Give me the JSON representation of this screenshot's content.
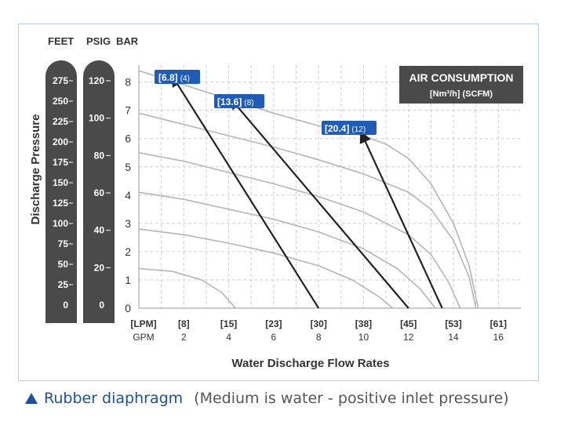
{
  "colors": {
    "pill": "#4a4a4a",
    "badge": "#1f5bb8",
    "grid": "#cfcfcf",
    "curve": "#b5b5b5",
    "line": "#222222",
    "caption": "#1d4fa0"
  },
  "caption": {
    "main": "Rubber diaphragm",
    "note": "(Medium is water -  positive inlet pressure)"
  },
  "chart_data": {
    "type": "line",
    "title": "",
    "xlabel": "Water Discharge Flow Rates",
    "ylabel": "Discharge Pressure",
    "xlim": [
      0,
      17
    ],
    "ylim": [
      0,
      8.6
    ],
    "grid": true,
    "x_ticks_lpm": [
      "[LPM]",
      "[8]",
      "[15]",
      "[23]",
      "[30]",
      "[38]",
      "[45]",
      "[53]",
      "[61]"
    ],
    "x_ticks_gpm": [
      "GPM",
      "2",
      "4",
      "6",
      "8",
      "10",
      "12",
      "14",
      "16"
    ],
    "y_ticks_bar": [
      "0",
      "1",
      "2",
      "3",
      "4",
      "5",
      "6",
      "7",
      "8"
    ],
    "units_header": [
      "FEET",
      "PSIG",
      "BAR"
    ],
    "feet_ticks": [
      "275",
      "250",
      "225",
      "200",
      "175",
      "150",
      "125",
      "100",
      "75",
      "50",
      "25",
      "0"
    ],
    "psig_ticks": [
      "120",
      "100",
      "80",
      "60",
      "40",
      "20",
      "0"
    ],
    "legend": {
      "title": "AIR CONSUMPTION",
      "subtitle": "[Nm³/h] (SCFM)",
      "placement": "top-right"
    },
    "air_labels": [
      {
        "bold": "[6.8]",
        "light": "(4)"
      },
      {
        "bold": "[13.6]",
        "light": "(8)"
      },
      {
        "bold": "[20.4]",
        "light": "(12)"
      }
    ],
    "air_lines": [
      {
        "label": "[6.8] (4)",
        "points": [
          [
            1.5,
            8.2
          ],
          [
            8.0,
            0
          ]
        ]
      },
      {
        "label": "[13.6] (8)",
        "points": [
          [
            4.1,
            7.4
          ],
          [
            12.0,
            0
          ]
        ]
      },
      {
        "label": "[20.4] (12)",
        "points": [
          [
            9.9,
            6.2
          ],
          [
            13.5,
            0
          ]
        ]
      }
    ],
    "series": [
      {
        "points": [
          [
            0,
            8.4
          ],
          [
            2,
            7.9
          ],
          [
            4,
            7.4
          ],
          [
            6,
            6.9
          ],
          [
            8,
            6.45
          ],
          [
            10,
            6.1
          ],
          [
            11,
            5.8
          ],
          [
            12,
            5.3
          ],
          [
            13,
            4.4
          ],
          [
            14,
            3.0
          ],
          [
            14.7,
            1.5
          ],
          [
            15.1,
            0
          ]
        ]
      },
      {
        "points": [
          [
            0,
            6.9
          ],
          [
            2,
            6.5
          ],
          [
            4,
            6.1
          ],
          [
            6,
            5.7
          ],
          [
            8,
            5.25
          ],
          [
            10,
            4.75
          ],
          [
            12,
            4.1
          ],
          [
            13,
            3.5
          ],
          [
            14,
            2.4
          ],
          [
            14.7,
            1.1
          ],
          [
            15.0,
            0
          ]
        ]
      },
      {
        "points": [
          [
            0,
            5.5
          ],
          [
            2,
            5.2
          ],
          [
            4,
            4.8
          ],
          [
            6,
            4.4
          ],
          [
            8,
            3.95
          ],
          [
            10,
            3.4
          ],
          [
            12,
            2.6
          ],
          [
            13,
            1.9
          ],
          [
            13.8,
            0.9
          ],
          [
            14.3,
            0
          ]
        ]
      },
      {
        "points": [
          [
            0,
            4.1
          ],
          [
            2,
            3.85
          ],
          [
            4,
            3.5
          ],
          [
            6,
            3.15
          ],
          [
            8,
            2.7
          ],
          [
            10,
            2.1
          ],
          [
            11.5,
            1.4
          ],
          [
            12.5,
            0.7
          ],
          [
            13.2,
            0
          ]
        ]
      },
      {
        "points": [
          [
            0,
            2.8
          ],
          [
            2,
            2.6
          ],
          [
            4,
            2.3
          ],
          [
            6,
            1.95
          ],
          [
            8,
            1.5
          ],
          [
            9.5,
            1.0
          ],
          [
            10.7,
            0.4
          ],
          [
            11.3,
            0
          ]
        ]
      },
      {
        "points": [
          [
            0,
            1.4
          ],
          [
            1.5,
            1.3
          ],
          [
            2.8,
            1.0
          ],
          [
            3.7,
            0.55
          ],
          [
            4.3,
            0
          ]
        ]
      }
    ]
  }
}
